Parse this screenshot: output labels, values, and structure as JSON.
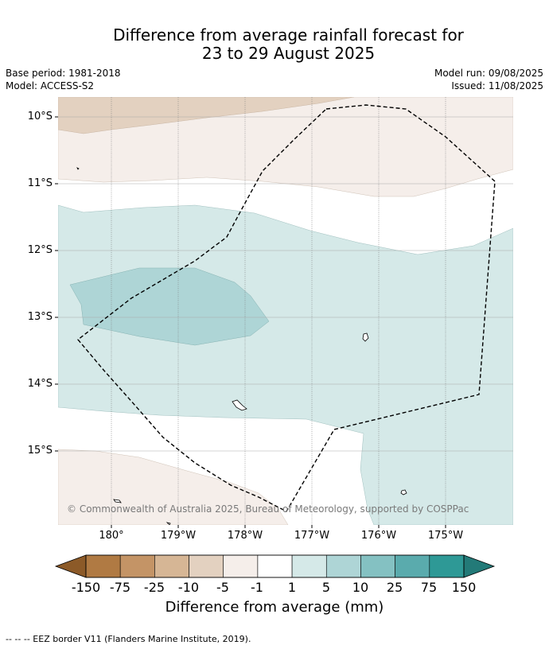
{
  "title": {
    "line1": "Difference from average rainfall forecast for",
    "line2": "23 to 29 August 2025"
  },
  "meta": {
    "base_period": "Base period: 1981-2018",
    "model": "Model: ACCESS-S2",
    "model_run": "Model run: 09/08/2025",
    "issued": "Issued: 11/08/2025"
  },
  "map": {
    "lat_labels": [
      "10°S",
      "11°S",
      "12°S",
      "13°S",
      "14°S",
      "15°S"
    ],
    "lon_labels": [
      "180°",
      "179°W",
      "178°W",
      "177°W",
      "176°W",
      "175°W"
    ],
    "copyright": "© Commonwealth of Australia 2025, Bureau of Meteorology, supported by COSPPac",
    "eez_border": "dashed",
    "colors": {
      "brown_light": "#e3d1c0",
      "brown_pale": "#f5eeea",
      "teal_pale": "#d5e9e8",
      "teal_light": "#aed5d6"
    }
  },
  "colorbar": {
    "ticks": [
      "-150",
      "-75",
      "-25",
      "-10",
      "-5",
      "-1",
      "1",
      "5",
      "10",
      "25",
      "75",
      "150"
    ],
    "colors": [
      "#8c5a28",
      "#b07a43",
      "#c49466",
      "#d6b695",
      "#e3d1c0",
      "#f5eeea",
      "#ffffff",
      "#d5e9e8",
      "#aed5d6",
      "#84c1c2",
      "#5aabad",
      "#2e9996",
      "#237a78"
    ],
    "title": "Difference from average (mm)"
  },
  "footnote": "--  --  -- EEZ border V11 (Flanders Marine Institute, 2019)."
}
